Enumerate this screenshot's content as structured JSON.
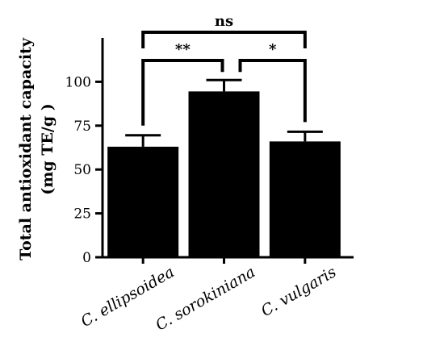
{
  "chart_data": {
    "type": "bar",
    "categories": [
      "C. ellipsoidea",
      "C. sorokiniana",
      "C. vulgaris"
    ],
    "values": [
      63,
      94.5,
      66
    ],
    "error": [
      6.5,
      6.5,
      5.5
    ],
    "ylabel_line1": "Total antioxidant capacity",
    "ylabel_line2": "(mg TE/g )",
    "ylim": [
      0,
      125
    ],
    "yticks": [
      0,
      25,
      50,
      75,
      100
    ],
    "bar_color": "#000000",
    "comparisons": [
      {
        "from": 0,
        "to": 1,
        "label": "**"
      },
      {
        "from": 1,
        "to": 2,
        "label": "*"
      },
      {
        "from": 0,
        "to": 2,
        "label": "ns"
      }
    ]
  }
}
